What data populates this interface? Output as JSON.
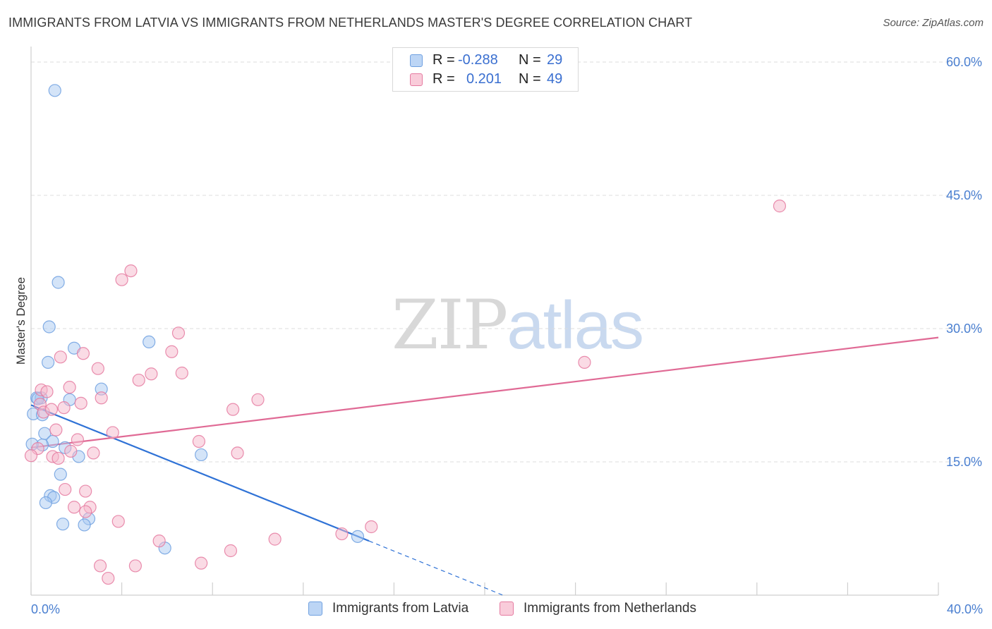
{
  "header": {
    "title": "IMMIGRANTS FROM LATVIA VS IMMIGRANTS FROM NETHERLANDS MASTER'S DEGREE CORRELATION CHART",
    "source": "Source: ZipAtlas.com"
  },
  "watermark": {
    "part1": "ZIP",
    "part2": "atlas"
  },
  "legend": {
    "rows": [
      {
        "r_label": "R =",
        "r_value": "-0.288",
        "n_label": "N =",
        "n_value": "29",
        "color": "#a9c9f2"
      },
      {
        "r_label": "R =",
        "r_value": "0.201",
        "n_label": "N =",
        "n_value": "49",
        "color": "#f6b8cb"
      }
    ]
  },
  "bottom_legend": {
    "items": [
      {
        "label": "Immigrants from Latvia",
        "color": "#a9c9f2"
      },
      {
        "label": "Immigrants from Netherlands",
        "color": "#f6b8cb"
      }
    ]
  },
  "chart_data": {
    "type": "scatter",
    "title": "IMMIGRANTS FROM LATVIA VS IMMIGRANTS FROM NETHERLANDS MASTER'S DEGREE CORRELATION CHART",
    "xlabel": "",
    "ylabel": "Master's Degree",
    "xlim": [
      0,
      40
    ],
    "ylim": [
      0,
      60
    ],
    "x_tick_labels": [
      "0.0%",
      "40.0%"
    ],
    "y_ticks": [
      15,
      30,
      45,
      60
    ],
    "y_tick_labels": [
      "15.0%",
      "30.0%",
      "45.0%",
      "60.0%"
    ],
    "grid": true,
    "legend_position": "top-center",
    "series": [
      {
        "name": "Immigrants from Latvia",
        "color": "#6fa0e0",
        "fill": "#a9c9f2",
        "r": -0.288,
        "n": 29,
        "points": [
          [
            1.05,
            56.8
          ],
          [
            1.2,
            35.2
          ],
          [
            0.8,
            30.2
          ],
          [
            5.2,
            28.5
          ],
          [
            1.9,
            27.8
          ],
          [
            0.75,
            26.2
          ],
          [
            3.1,
            23.2
          ],
          [
            0.25,
            22.2
          ],
          [
            0.45,
            22.2
          ],
          [
            1.7,
            22.0
          ],
          [
            0.1,
            20.4
          ],
          [
            0.5,
            20.3
          ],
          [
            0.6,
            18.2
          ],
          [
            0.95,
            17.3
          ],
          [
            0.5,
            16.9
          ],
          [
            0.05,
            17.0
          ],
          [
            1.5,
            16.6
          ],
          [
            2.1,
            15.6
          ],
          [
            7.5,
            15.8
          ],
          [
            1.3,
            13.6
          ],
          [
            0.85,
            11.2
          ],
          [
            1.0,
            11.0
          ],
          [
            0.65,
            10.4
          ],
          [
            2.55,
            8.6
          ],
          [
            1.4,
            8.0
          ],
          [
            2.35,
            7.9
          ],
          [
            14.4,
            6.6
          ],
          [
            5.9,
            5.3
          ],
          [
            0.3,
            22.1
          ]
        ],
        "trend": {
          "x0": 0.0,
          "y0": 21.4,
          "x1": 14.9,
          "y1": 6.1,
          "dash_x1": 20.8,
          "dash_y1": 0.0
        }
      },
      {
        "name": "Immigrants from Netherlands",
        "color": "#e57aa0",
        "fill": "#f6b8cb",
        "r": 0.201,
        "n": 49,
        "points": [
          [
            4.4,
            36.5
          ],
          [
            4.0,
            35.5
          ],
          [
            33.0,
            43.8
          ],
          [
            6.5,
            29.5
          ],
          [
            6.2,
            27.4
          ],
          [
            2.3,
            27.2
          ],
          [
            1.3,
            26.8
          ],
          [
            24.4,
            26.2
          ],
          [
            2.95,
            25.5
          ],
          [
            6.65,
            25.0
          ],
          [
            5.3,
            24.9
          ],
          [
            4.75,
            24.2
          ],
          [
            1.7,
            23.4
          ],
          [
            0.45,
            23.1
          ],
          [
            0.7,
            22.9
          ],
          [
            3.1,
            22.2
          ],
          [
            10.0,
            22.0
          ],
          [
            0.4,
            21.5
          ],
          [
            1.45,
            21.1
          ],
          [
            8.9,
            20.9
          ],
          [
            0.55,
            20.6
          ],
          [
            1.1,
            18.6
          ],
          [
            3.6,
            18.3
          ],
          [
            2.05,
            17.5
          ],
          [
            7.4,
            17.3
          ],
          [
            0.3,
            16.5
          ],
          [
            1.75,
            16.2
          ],
          [
            2.75,
            16.0
          ],
          [
            9.1,
            16.0
          ],
          [
            0.95,
            15.6
          ],
          [
            1.2,
            15.4
          ],
          [
            0.0,
            15.7
          ],
          [
            1.5,
            11.9
          ],
          [
            2.4,
            11.7
          ],
          [
            1.9,
            9.9
          ],
          [
            2.6,
            9.9
          ],
          [
            2.4,
            9.4
          ],
          [
            3.85,
            8.3
          ],
          [
            15.0,
            7.7
          ],
          [
            13.7,
            6.9
          ],
          [
            10.75,
            6.3
          ],
          [
            5.65,
            6.1
          ],
          [
            8.8,
            5.0
          ],
          [
            7.5,
            3.6
          ],
          [
            3.05,
            3.3
          ],
          [
            4.6,
            3.3
          ],
          [
            3.4,
            1.9
          ],
          [
            0.9,
            20.9
          ],
          [
            2.2,
            21.6
          ]
        ],
        "trend": {
          "x0": 0.0,
          "y0": 16.6,
          "x1": 40.0,
          "y1": 29.0
        }
      }
    ]
  }
}
